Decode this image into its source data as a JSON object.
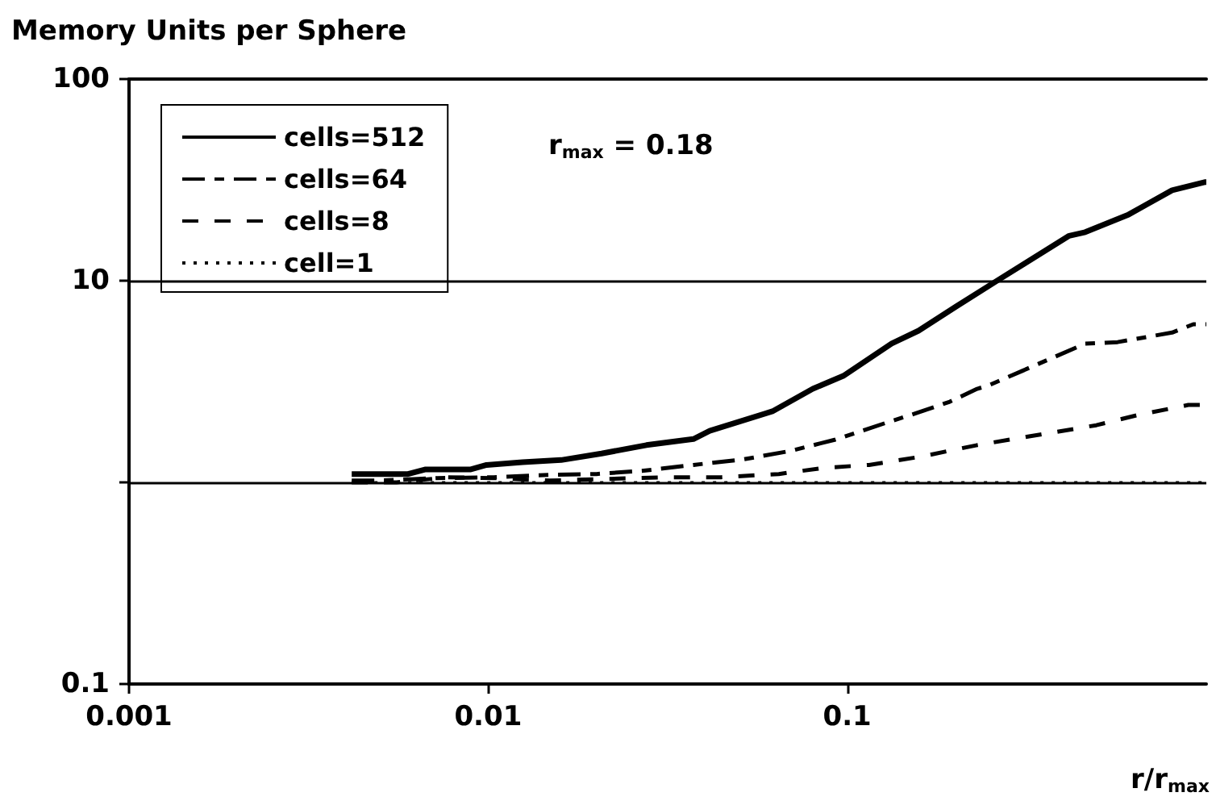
{
  "chart_data": {
    "type": "line",
    "title": "Memory Units per Sphere",
    "xlabel": "r/r$_{max}$",
    "annotations": [
      "r$_{max}$ = 0.18"
    ],
    "ref_lines": [
      {
        "axis": "y",
        "value": 10
      },
      {
        "axis": "y",
        "value": 1
      }
    ],
    "log": "xy",
    "legend": "top left",
    "marker": "none",
    "xlim": [
      0.001,
      1
    ],
    "xticks": [
      0.001,
      0.01,
      0.1
    ],
    "ylim": [
      0.1,
      100
    ],
    "yticks": [
      0.1,
      {
        "value": 1,
        "label": null
      },
      10,
      100
    ],
    "series": [
      {
        "name": "cells=512",
        "color": "#000000",
        "line_style": "solid",
        "x": [
          0.00417,
          0.00598,
          0.0067,
          0.00895,
          0.0099,
          0.01247,
          0.01597,
          0.0207,
          0.0276,
          0.0373,
          0.0414,
          0.0619,
          0.0802,
          0.0975,
          0.133,
          0.158,
          0.201,
          0.266,
          0.415,
          0.46,
          0.608,
          0.803,
          0.989,
          1.0
        ],
        "values": [
          1.1,
          1.1,
          1.16,
          1.16,
          1.22,
          1.26,
          1.29,
          1.39,
          1.53,
          1.64,
          1.8,
          2.25,
          2.91,
          3.37,
          4.88,
          5.65,
          7.45,
          10.2,
          16.7,
          17.4,
          21.3,
          28.1,
          30.8,
          30.8
        ]
      },
      {
        "name": "cells=64",
        "color": "#000000",
        "line_style": "dashed",
        "x": [
          0.00417,
          0.00497,
          0.00721,
          0.01035,
          0.01486,
          0.02004,
          0.0268,
          0.0373,
          0.0514,
          0.0693,
          0.0927,
          0.129,
          0.154,
          0.193,
          0.23,
          0.247,
          0.307,
          0.46,
          0.566,
          0.803,
          0.92,
          1.0
        ],
        "values": [
          1.02,
          1.02,
          1.05,
          1.06,
          1.09,
          1.1,
          1.14,
          1.22,
          1.3,
          1.43,
          1.63,
          1.98,
          2.19,
          2.51,
          2.91,
          3.02,
          3.57,
          4.87,
          4.96,
          5.53,
          6.08,
          6.08
        ]
      },
      {
        "name": "cells=8",
        "color": "#000000",
        "line_style": "dashed",
        "x": [
          0.00417,
          0.00556,
          0.00774,
          0.01035,
          0.01486,
          0.0216,
          0.031,
          0.0445,
          0.0645,
          0.0861,
          0.115,
          0.16,
          0.23,
          0.321,
          0.494,
          0.64,
          0.891,
          1.0
        ],
        "values": [
          1.0,
          1.0,
          1.06,
          1.05,
          1.02,
          1.04,
          1.06,
          1.06,
          1.1,
          1.18,
          1.22,
          1.34,
          1.53,
          1.69,
          1.92,
          2.15,
          2.42,
          2.42
        ]
      },
      {
        "name": "cell=1",
        "color": "#000000",
        "line_style": "dotted",
        "x": [
          0.00417,
          1.0
        ],
        "values": [
          1.0,
          1.0
        ]
      }
    ]
  }
}
